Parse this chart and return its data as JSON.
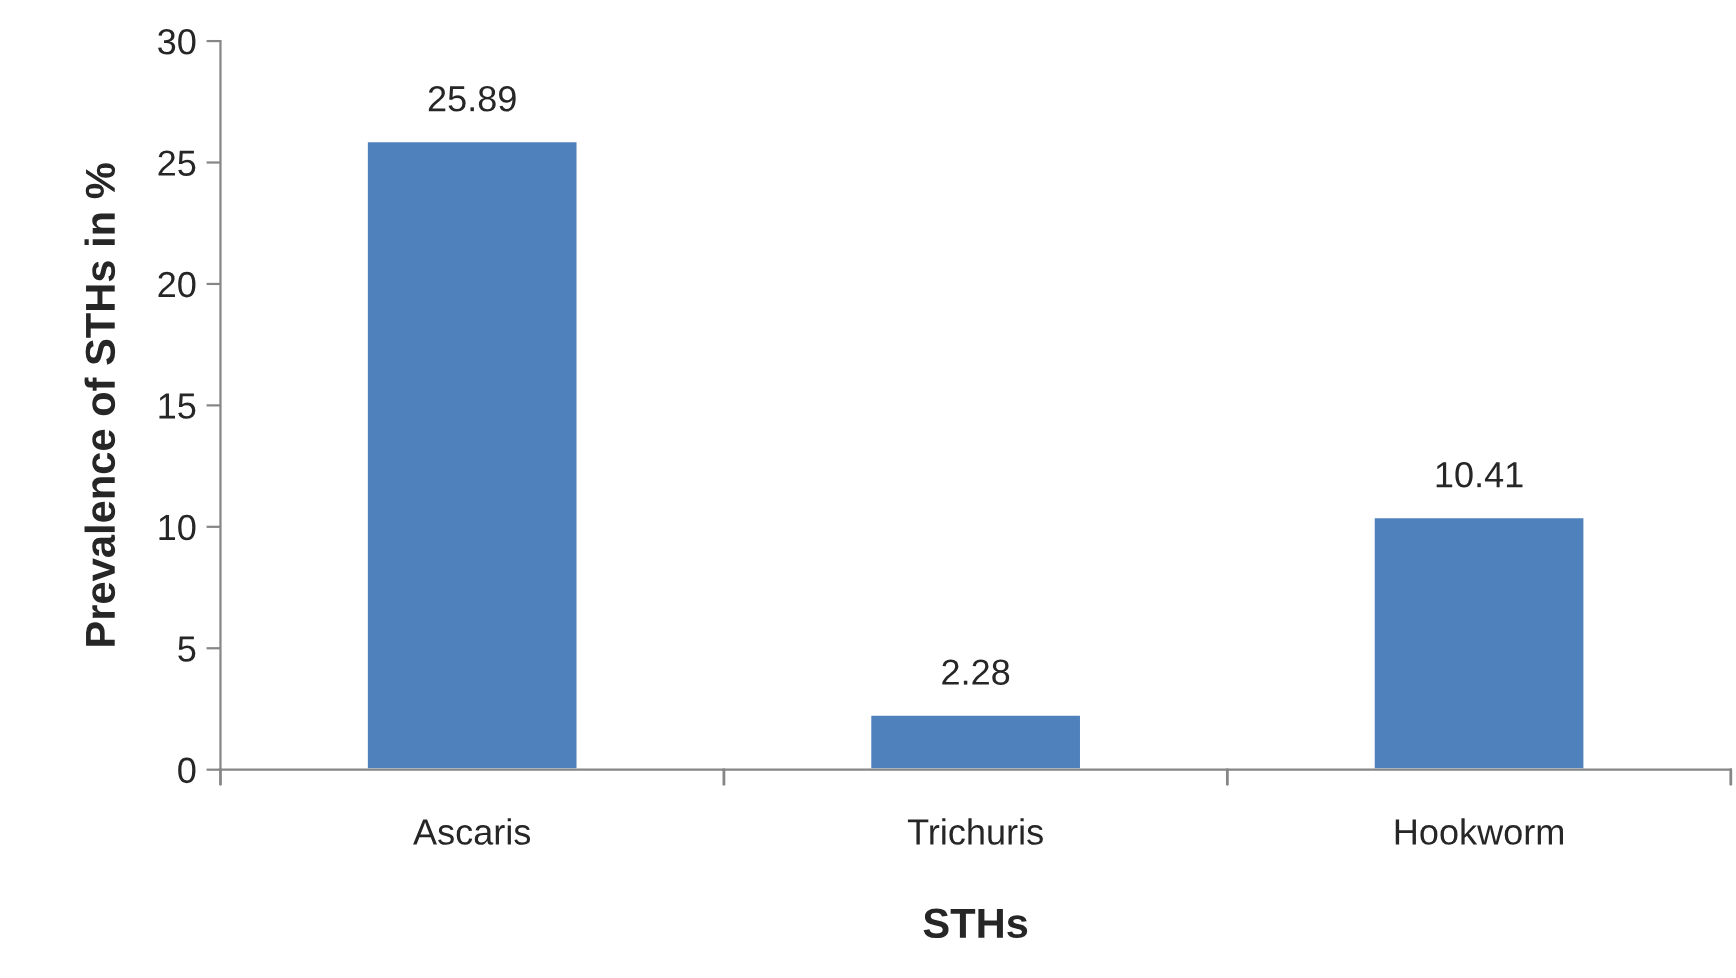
{
  "chart_data": {
    "type": "bar",
    "xlabel": "STHs",
    "ylabel": "Prevalence of STHs in %",
    "categories": [
      "Ascaris",
      "Trichuris",
      "Hookworm"
    ],
    "values": [
      25.89,
      2.28,
      10.41
    ],
    "color": "#4f81bd",
    "ylim": [
      0,
      30
    ],
    "yticks": [
      0,
      5,
      10,
      15,
      20,
      25,
      30
    ],
    "data_labels": true,
    "grid": false,
    "legend": false
  }
}
